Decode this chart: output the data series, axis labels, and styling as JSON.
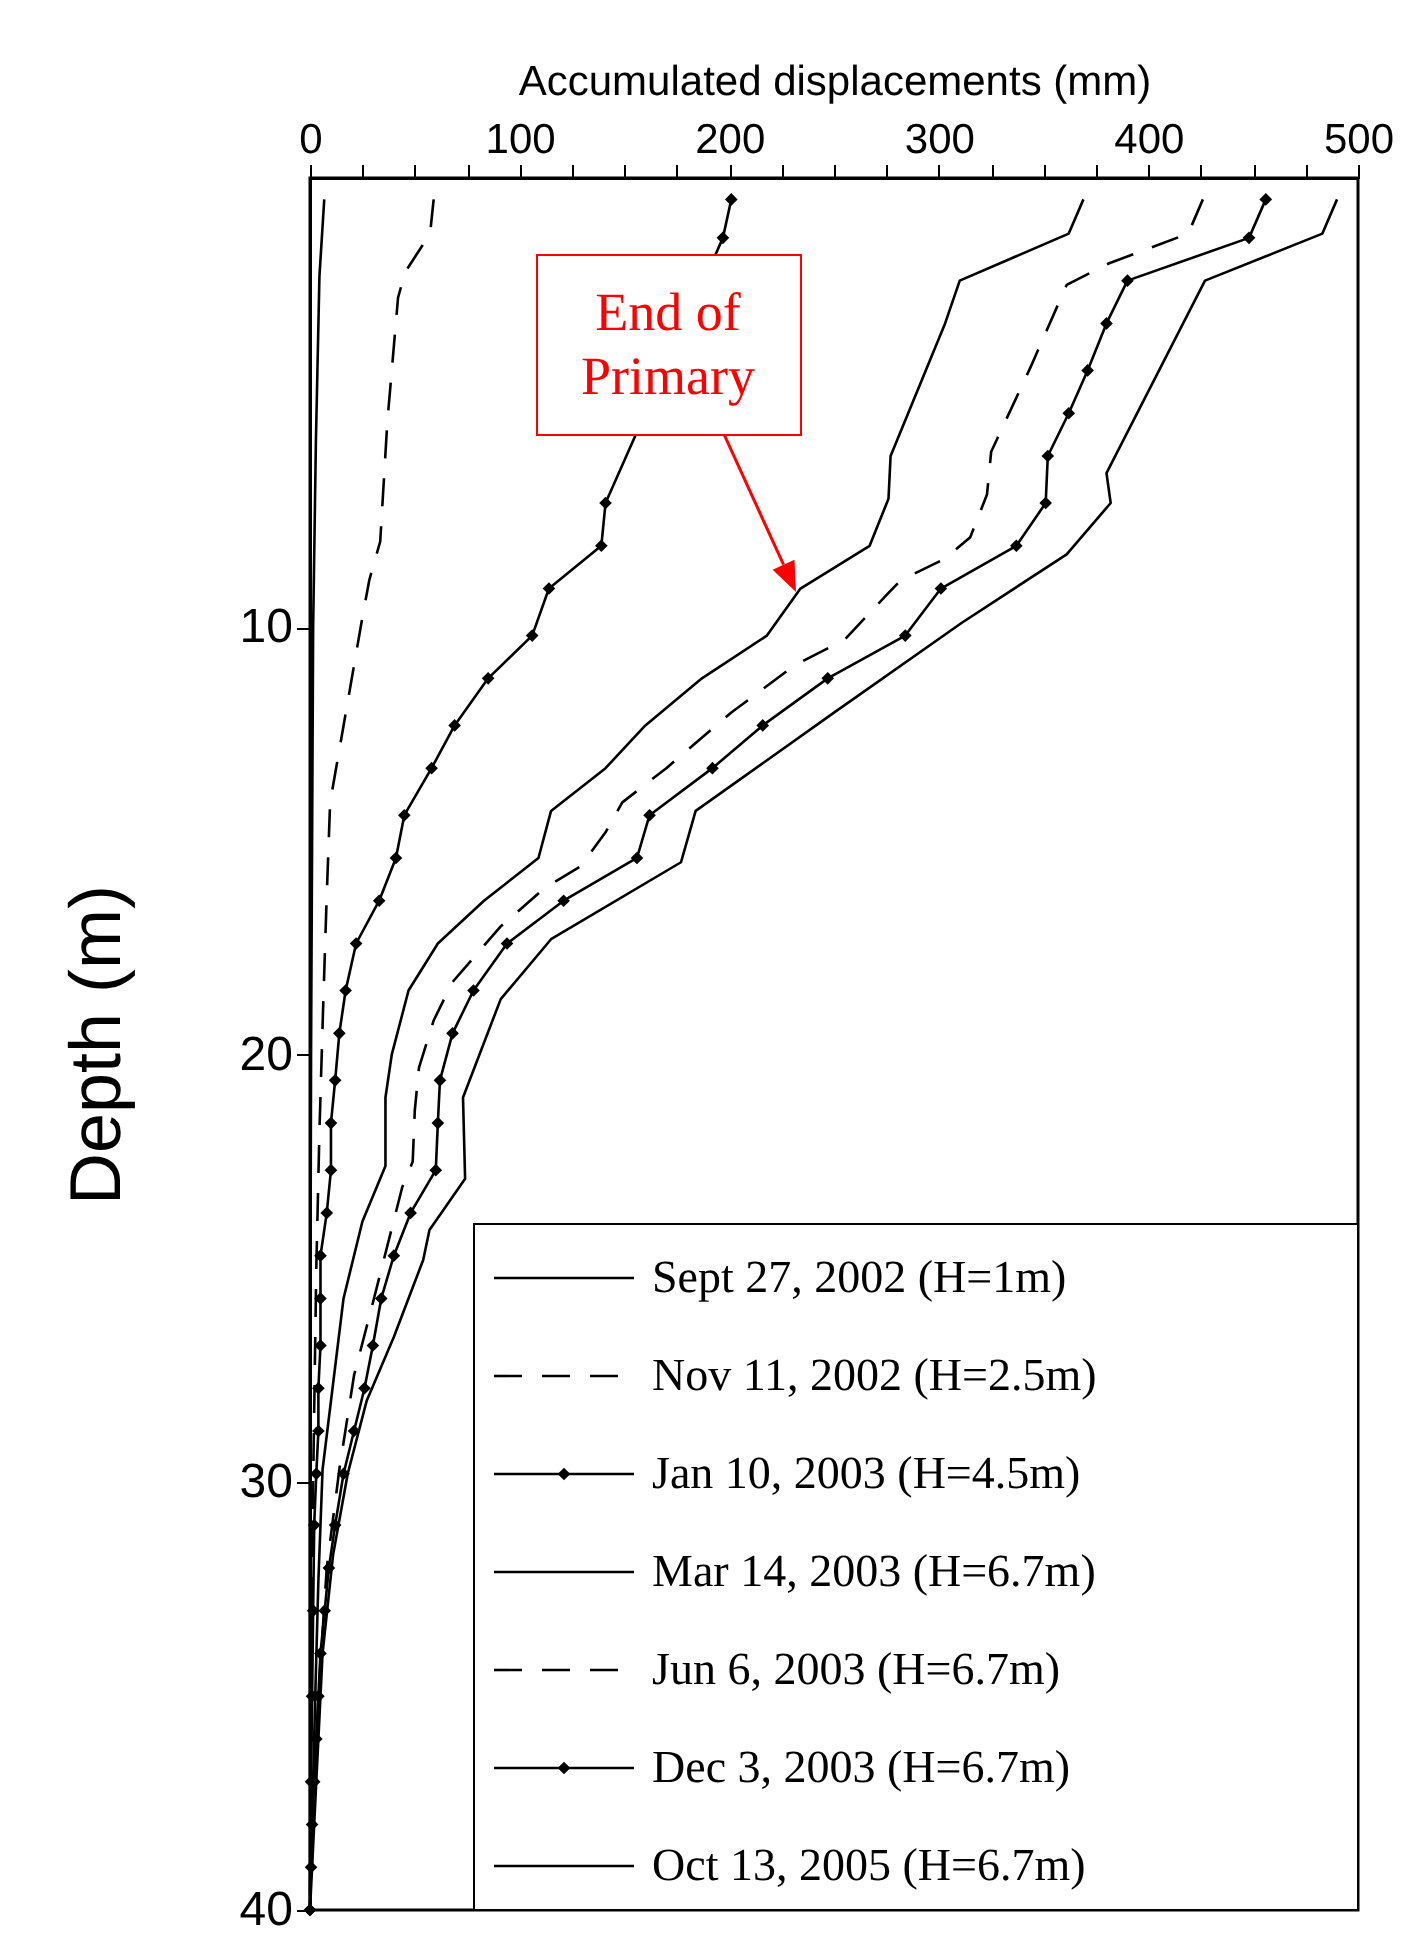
{
  "chart_data": {
    "type": "line",
    "xlabel": "Accumulated displacements (mm)",
    "ylabel": "Depth (m)",
    "xlim": [
      0,
      500
    ],
    "ylim": [
      40,
      -0.5
    ],
    "xticks": [
      0,
      {
        "value": 25,
        "label": null
      },
      {
        "value": 50,
        "label": null
      },
      {
        "value": 75,
        "label": null
      },
      100,
      {
        "value": 125,
        "label": null
      },
      {
        "value": 150,
        "label": null
      },
      {
        "value": 175,
        "label": null
      },
      200,
      {
        "value": 225,
        "label": null
      },
      {
        "value": 250,
        "label": null
      },
      {
        "value": 275,
        "label": null
      },
      300,
      {
        "value": 325,
        "label": null
      },
      {
        "value": 350,
        "label": null
      },
      {
        "value": 375,
        "label": null
      },
      400,
      {
        "value": 425,
        "label": null
      },
      {
        "value": 450,
        "label": null
      },
      {
        "value": 475,
        "label": null
      },
      500
    ],
    "yticks": [
      10,
      20,
      30,
      40
    ],
    "grid": false,
    "legend": "bottom right",
    "annotations": [
      "End of Primary"
    ],
    "series": [
      {
        "name": "Sept 27, 2002 (H=1m)",
        "color": "#000000",
        "line_style": "solid",
        "marker": "none",
        "x": [
          6.8,
          4.5,
          2.8,
          1.5,
          0.5,
          0,
          0
        ],
        "values": [
          0,
          1.8,
          5.7,
          10,
          20,
          30,
          40
        ]
      },
      {
        "name": "Nov 11, 2002 (H=2.5m)",
        "color": "#000000",
        "line_style": "dashed",
        "marker": "none",
        "x": [
          59,
          57.3,
          45.4,
          42,
          36.9,
          33.5,
          28.3,
          24.9,
          17.1,
          9.6,
          7.9,
          6.2,
          4.5,
          3,
          1.5,
          0.5,
          0
        ],
        "values": [
          0,
          0.8,
          1.7,
          2.3,
          5.2,
          8,
          8.9,
          9.8,
          12,
          14.1,
          16.4,
          19,
          21.8,
          25,
          30,
          35,
          40
        ]
      },
      {
        "name": "Jan 10, 2003 (H=4.5m)",
        "color": "#000000",
        "line_style": "solid",
        "marker": "diamond",
        "x": [
          201,
          197,
          141,
          139,
          114,
          106,
          85,
          69,
          58,
          45,
          41,
          33,
          22,
          17,
          14,
          12,
          10,
          10,
          8,
          5,
          5,
          5,
          4,
          4,
          3,
          2,
          1.5,
          1,
          0.5,
          0
        ],
        "values": [
          0,
          0.9,
          7.1,
          8.1,
          9.1,
          10.2,
          11.2,
          12.3,
          13.3,
          14.4,
          15.4,
          16.4,
          17.4,
          18.5,
          19.5,
          20.6,
          21.6,
          22.7,
          23.7,
          24.7,
          25.7,
          26.8,
          27.8,
          28.8,
          29.8,
          31,
          33,
          35,
          37,
          40
        ]
      },
      {
        "name": "Mar 14, 2003 (H=6.7m)",
        "color": "#000000",
        "line_style": "solid",
        "marker": "none",
        "x": [
          369,
          362,
          310,
          303,
          277,
          276,
          267,
          234,
          218,
          187,
          160,
          141,
          115,
          109,
          83,
          61,
          47,
          39,
          36,
          36,
          25,
          16,
          11,
          6,
          4,
          2.5,
          0
        ],
        "values": [
          0,
          0.8,
          1.9,
          2.9,
          6,
          7,
          8.1,
          9.1,
          10.2,
          11.2,
          12.3,
          13.3,
          14.3,
          15.4,
          16.4,
          17.4,
          18.5,
          20,
          21,
          22.6,
          23.9,
          25.7,
          27.7,
          29.7,
          32.3,
          35,
          40
        ]
      },
      {
        "name": "Jun 6, 2003 (H=6.7m)",
        "color": "#000000",
        "line_style": "dashed",
        "marker": "none",
        "x": [
          426,
          419,
          381,
          361,
          344,
          325,
          323,
          315,
          303,
          282,
          276,
          255,
          231,
          201,
          170,
          149,
          141,
          129,
          112,
          91,
          68,
          59,
          52,
          50,
          49,
          44,
          30,
          21,
          14,
          8,
          4,
          0
        ],
        "values": [
          0,
          0.8,
          1.5,
          2,
          3.9,
          5.9,
          6.9,
          7.9,
          8.4,
          8.9,
          9.2,
          10.3,
          10.9,
          12,
          13.3,
          14.1,
          14.8,
          15.6,
          16.1,
          17,
          18.3,
          19.2,
          20.3,
          21.3,
          22.5,
          23.1,
          25.8,
          27.5,
          29.7,
          32,
          35,
          40
        ]
      },
      {
        "name": "Dec 3, 2003 (H=6.7m)",
        "color": "#000000",
        "line_style": "solid",
        "marker": "diamond",
        "x": [
          456,
          448,
          390,
          380,
          371,
          362,
          352,
          351,
          337,
          301,
          284,
          247,
          216,
          192,
          162,
          156,
          121,
          94,
          78,
          68,
          62,
          61,
          60,
          48,
          40,
          34,
          30,
          26,
          21,
          16,
          12,
          9,
          7,
          5,
          4,
          3,
          2,
          1,
          0.5,
          0
        ],
        "values": [
          0,
          0.9,
          1.9,
          2.9,
          4,
          5,
          6,
          7.1,
          8.1,
          9.1,
          10.2,
          11.2,
          12.3,
          13.3,
          14.4,
          15.4,
          16.4,
          17.4,
          18.5,
          19.5,
          20.6,
          21.6,
          22.7,
          23.7,
          24.7,
          25.7,
          26.8,
          27.8,
          28.8,
          29.8,
          31,
          32,
          33,
          34,
          35,
          36,
          37,
          38,
          39,
          40
        ]
      },
      {
        "name": "Oct 13, 2005 (H=6.7m)",
        "color": "#000000",
        "line_style": "solid",
        "marker": "none",
        "x": [
          490,
          483,
          427,
          380,
          382,
          361,
          311,
          250,
          184,
          177,
          115,
          91,
          73,
          74,
          57,
          54,
          40,
          27,
          18,
          11,
          6,
          3,
          0
        ],
        "values": [
          0,
          0.8,
          1.9,
          6.4,
          7.1,
          8.3,
          9.9,
          12,
          14.3,
          15.5,
          17.3,
          18.7,
          21,
          22.9,
          24.1,
          24.8,
          26.6,
          28.1,
          29.8,
          31.7,
          34,
          37,
          40
        ]
      }
    ]
  }
}
